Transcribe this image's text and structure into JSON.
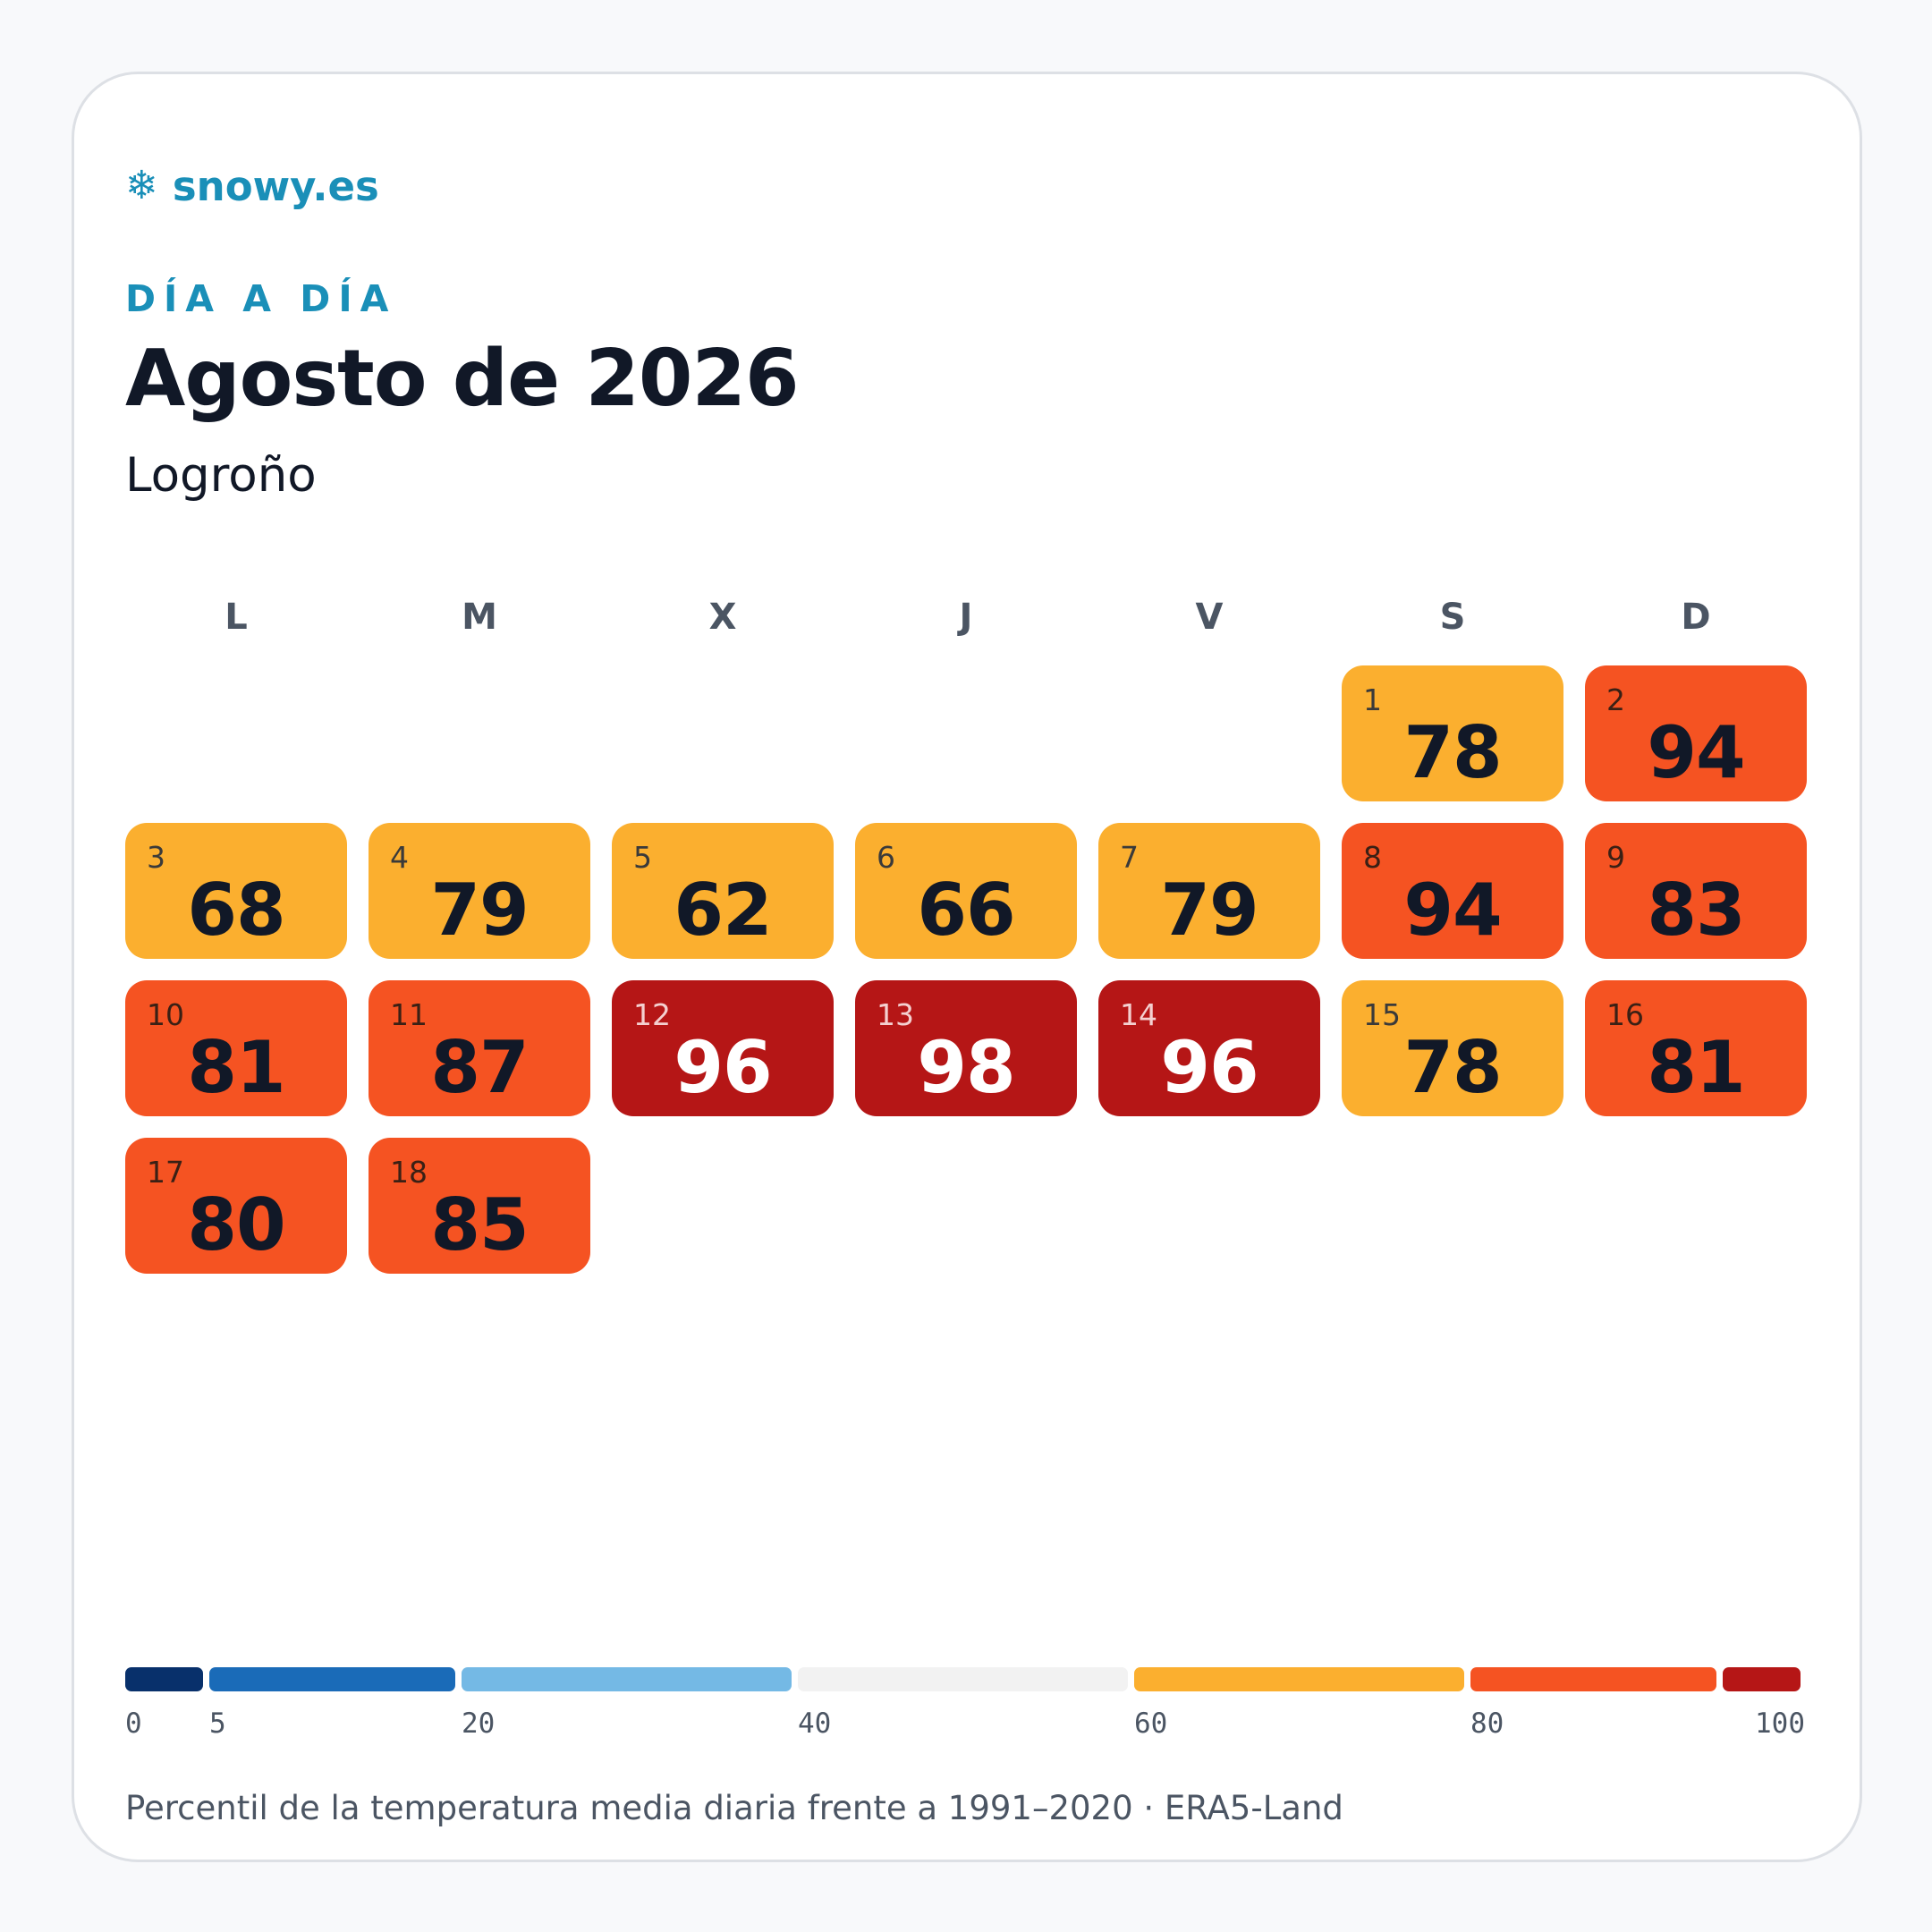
{
  "brand": {
    "icon": "snowflake-icon",
    "glyph": "❄",
    "name": "snowy.es"
  },
  "eyebrow": "DÍA A DÍA",
  "title": "Agosto de 2026",
  "subtitle": "Logroño",
  "weekdays": [
    "L",
    "M",
    "X",
    "J",
    "V",
    "S",
    "D"
  ],
  "days": [
    {
      "day": "1",
      "value": "78"
    },
    {
      "day": "2",
      "value": "94"
    },
    {
      "day": "3",
      "value": "68"
    },
    {
      "day": "4",
      "value": "79"
    },
    {
      "day": "5",
      "value": "62"
    },
    {
      "day": "6",
      "value": "66"
    },
    {
      "day": "7",
      "value": "79"
    },
    {
      "day": "8",
      "value": "94"
    },
    {
      "day": "9",
      "value": "83"
    },
    {
      "day": "10",
      "value": "81"
    },
    {
      "day": "11",
      "value": "87"
    },
    {
      "day": "12",
      "value": "96"
    },
    {
      "day": "13",
      "value": "98"
    },
    {
      "day": "14",
      "value": "96"
    },
    {
      "day": "15",
      "value": "78"
    },
    {
      "day": "16",
      "value": "81"
    },
    {
      "day": "17",
      "value": "80"
    },
    {
      "day": "18",
      "value": "85"
    }
  ],
  "first_weekday_index": 5,
  "scale": {
    "ticks": [
      "0",
      "5",
      "20",
      "40",
      "60",
      "80",
      "100"
    ],
    "bands": [
      {
        "from": 0,
        "to": 5,
        "color": "#08306b"
      },
      {
        "from": 5,
        "to": 20,
        "color": "#1a6bb8"
      },
      {
        "from": 20,
        "to": 40,
        "color": "#74b9e5"
      },
      {
        "from": 40,
        "to": 60,
        "color": "#f2f2f2"
      },
      {
        "from": 60,
        "to": 80,
        "color": "#fbaf2f"
      },
      {
        "from": 80,
        "to": 95,
        "color": "#f55322"
      },
      {
        "from": 95,
        "to": 100,
        "color": "#b51616"
      }
    ]
  },
  "footer": "Percentil de la temperatura media diaria frente a 1991–2020 · ERA5-Land"
}
